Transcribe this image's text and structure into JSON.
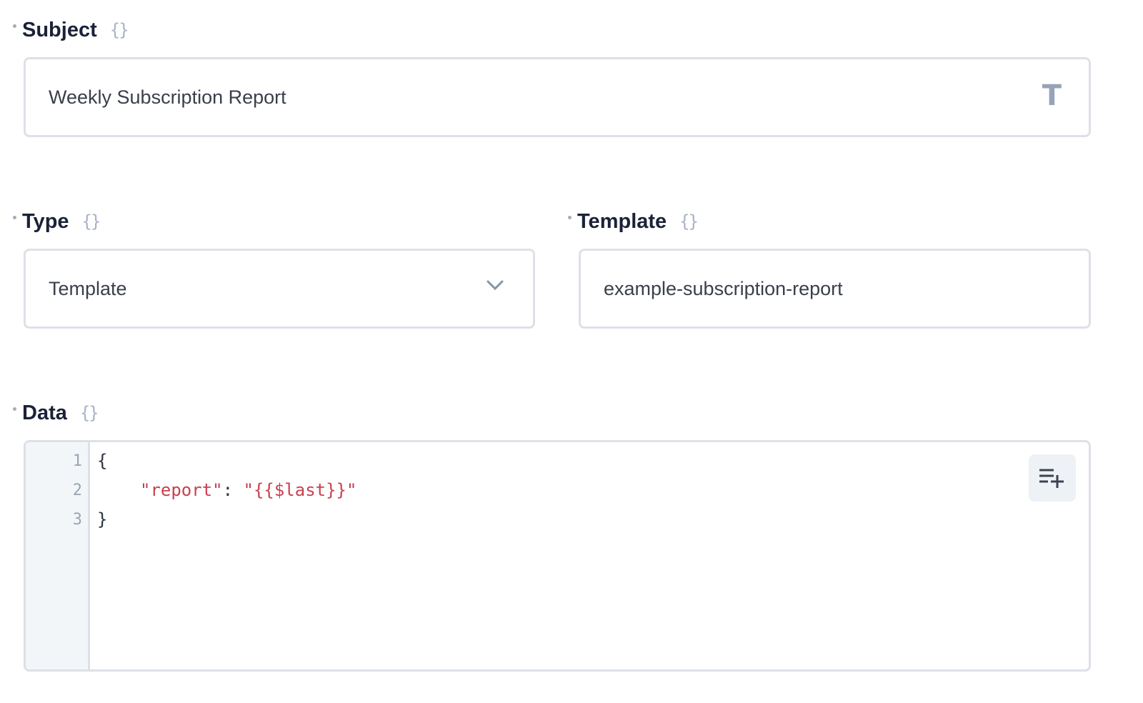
{
  "subject": {
    "label": "Subject",
    "value": "Weekly Subscription Report",
    "type_icon": "T"
  },
  "type": {
    "label": "Type",
    "value": "Template"
  },
  "template": {
    "label": "Template",
    "value": "example-subscription-report"
  },
  "data": {
    "label": "Data",
    "line_numbers": [
      "1",
      "2",
      "3"
    ],
    "lines": {
      "open": "{",
      "key": "\"report\"",
      "colon": ": ",
      "value": "\"{{$last}}\"",
      "close": "}"
    }
  },
  "variable_icon": "{}",
  "colors": {
    "label": "#1a2238",
    "border": "#dde1e7",
    "string": "#c8414f",
    "gutter": "#f3f6f9"
  }
}
